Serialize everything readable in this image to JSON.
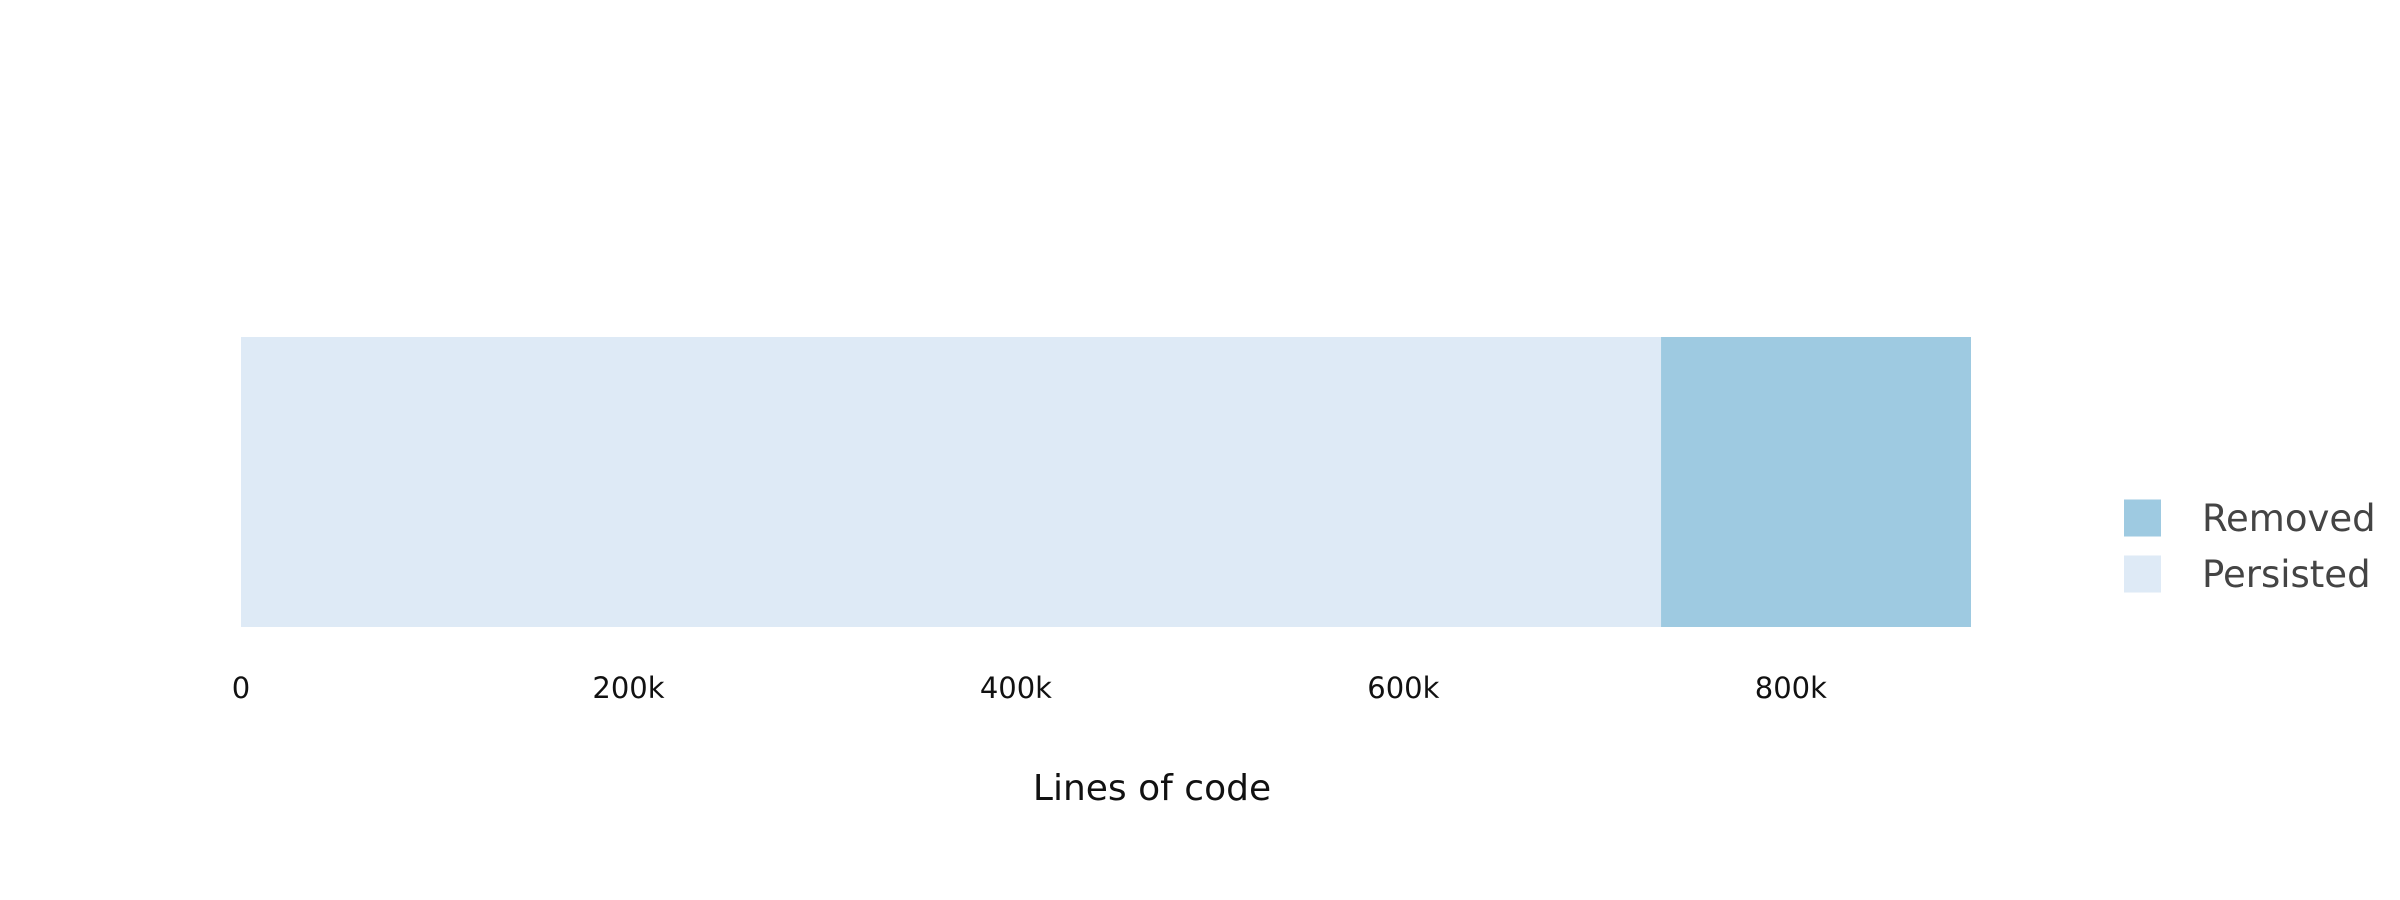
{
  "chart_data": {
    "type": "bar",
    "orientation": "horizontal",
    "stacked": true,
    "categories": [
      ""
    ],
    "series": [
      {
        "name": "Persisted",
        "values": [
          733000
        ],
        "color": "#deeaf6"
      },
      {
        "name": "Removed",
        "values": [
          160000
        ],
        "color": "#9ecae1"
      }
    ],
    "xlabel": "Lines of code",
    "ylabel": "",
    "xlim": [
      0,
      893000
    ],
    "x_ticks": [
      {
        "value": 0,
        "label": "0"
      },
      {
        "value": 200000,
        "label": "200k"
      },
      {
        "value": 400000,
        "label": "400k"
      },
      {
        "value": 600000,
        "label": "600k"
      },
      {
        "value": 800000,
        "label": "800k"
      }
    ],
    "grid": false,
    "legend": {
      "position": "right",
      "items": [
        {
          "label": "Removed",
          "color": "#9ecae1"
        },
        {
          "label": "Persisted",
          "color": "#deeaf6"
        }
      ]
    }
  }
}
